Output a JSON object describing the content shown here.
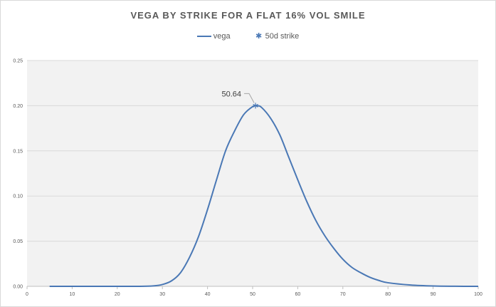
{
  "chart_data": {
    "type": "line",
    "title": "VEGA BY STRIKE FOR A FLAT 16% VOL SMILE",
    "xlabel": "",
    "ylabel": "",
    "xlim": [
      0,
      100
    ],
    "ylim": [
      0,
      0.25
    ],
    "x_ticks": [
      "0",
      "10",
      "20",
      "30",
      "40",
      "50",
      "60",
      "70",
      "80",
      "90",
      "100"
    ],
    "y_ticks": [
      "0.00",
      "0.05",
      "0.10",
      "0.15",
      "0.20",
      "0.25"
    ],
    "grid": true,
    "legend_position": "top",
    "series": [
      {
        "name": "vega",
        "type": "line",
        "color": "#4a78b5",
        "x": [
          5,
          10,
          15,
          20,
          25,
          28,
          30,
          32,
          34,
          36,
          38,
          40,
          42,
          44,
          46,
          48,
          50,
          51,
          52,
          54,
          56,
          58,
          60,
          62,
          64,
          66,
          68,
          70,
          72,
          74,
          76,
          78,
          80,
          85,
          90,
          95,
          100
        ],
        "y": [
          0,
          0,
          0,
          0,
          0,
          0.0005,
          0.002,
          0.006,
          0.015,
          0.032,
          0.055,
          0.085,
          0.118,
          0.15,
          0.172,
          0.19,
          0.199,
          0.2,
          0.198,
          0.186,
          0.168,
          0.143,
          0.118,
          0.094,
          0.073,
          0.056,
          0.042,
          0.03,
          0.021,
          0.015,
          0.01,
          0.0065,
          0.004,
          0.0015,
          0.0004,
          0.0001,
          0
        ]
      },
      {
        "name": "50d strike",
        "type": "scatter",
        "marker": "asterisk",
        "color": "#4a78b5",
        "x": [
          50.64
        ],
        "y": [
          0.2
        ]
      }
    ],
    "annotations": [
      {
        "text": "50.64",
        "x": 50.64,
        "y": 0.2
      }
    ]
  }
}
